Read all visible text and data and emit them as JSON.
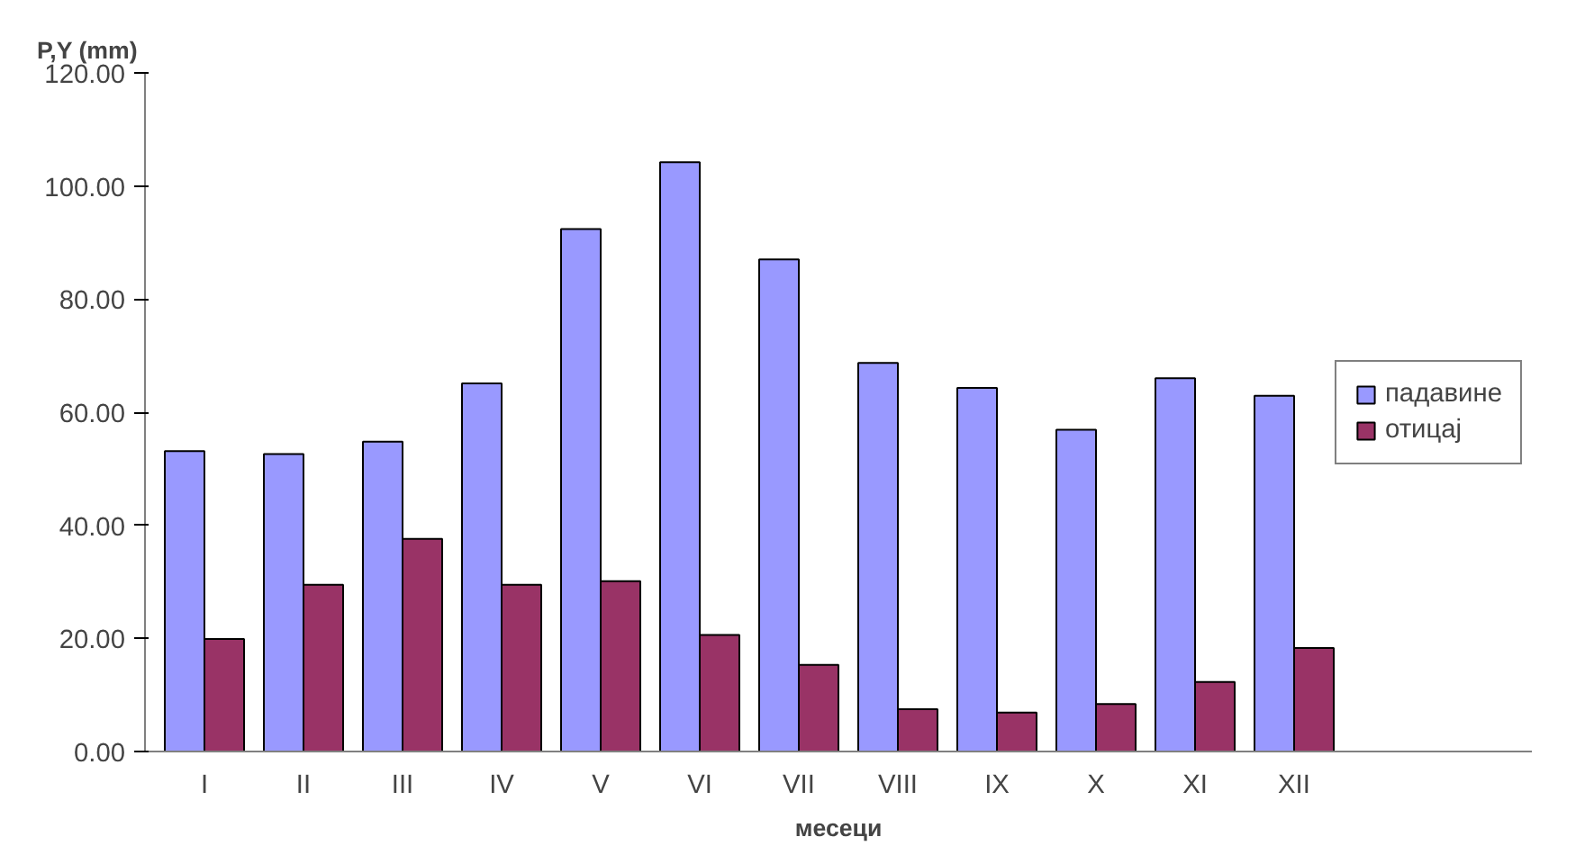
{
  "chart_data": {
    "type": "bar",
    "ylabel": "P,Y (mm)",
    "xlabel": "месеци",
    "categories": [
      "I",
      "II",
      "III",
      "IV",
      "V",
      "VI",
      "VII",
      "VIII",
      "IX",
      "X",
      "XI",
      "XII"
    ],
    "series": [
      {
        "name": "падавине",
        "color": "#9999ff",
        "values": [
          53.1,
          52.6,
          54.8,
          65.1,
          92.4,
          104.2,
          87.0,
          68.7,
          64.3,
          56.9,
          66.0,
          62.9
        ]
      },
      {
        "name": "отицај",
        "color": "#993366",
        "values": [
          19.9,
          29.5,
          37.6,
          29.5,
          30.1,
          20.6,
          15.3,
          7.5,
          6.9,
          8.4,
          12.3,
          18.3
        ]
      }
    ],
    "ylim": [
      0,
      120
    ],
    "yticks": [
      {
        "value": 0,
        "label": "0.00"
      },
      {
        "value": 20,
        "label": "20.00"
      },
      {
        "value": 40,
        "label": "40.00"
      },
      {
        "value": 60,
        "label": "60.00"
      },
      {
        "value": 80,
        "label": "80.00"
      },
      {
        "value": 100,
        "label": "100.00"
      },
      {
        "value": 120,
        "label": "120.00"
      }
    ],
    "grid": false,
    "legend": "right"
  }
}
